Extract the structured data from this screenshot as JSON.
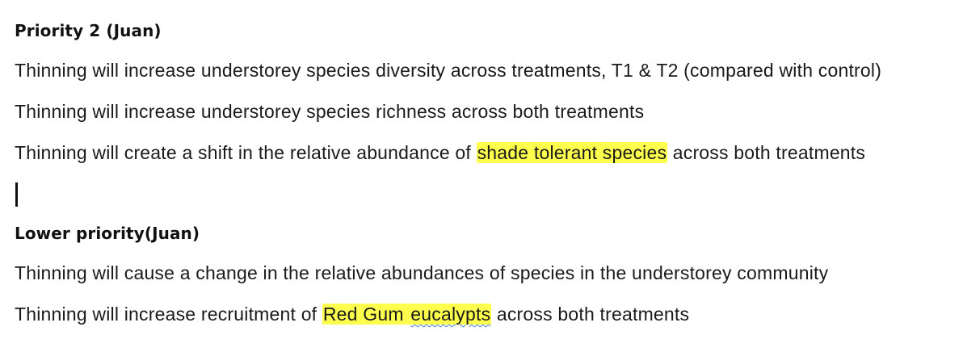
{
  "sections": [
    {
      "heading": "Priority 2 (Juan)",
      "lines": [
        {
          "text": "Thinning will increase understorey species diversity across treatments, T1 & T2 (compared with control)"
        },
        {
          "text": "Thinning will increase understorey species richness across both treatments"
        },
        {
          "before": "Thinning will create a shift in the relative abundance of ",
          "highlight": "shade tolerant species",
          "after": " across both treatments"
        }
      ]
    },
    {
      "heading": "Lower priority(Juan)",
      "lines": [
        {
          "text": "Thinning will cause a change in the relative abundances of species in the understorey community"
        },
        {
          "before": "Thinning will increase recruitment of ",
          "highlight_a": "Red Gum ",
          "highlight_b": "eucalypts",
          "after": " across both treatments"
        }
      ]
    }
  ],
  "colors": {
    "highlight": "#ffff4d",
    "spellcheck_underline": "#4a7bd6",
    "text": "#1a1a1a"
  }
}
